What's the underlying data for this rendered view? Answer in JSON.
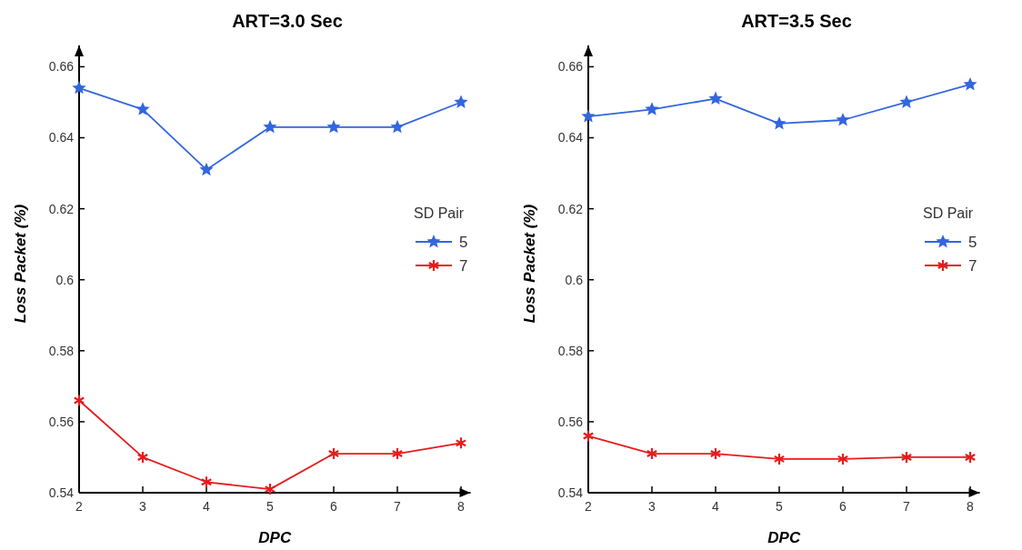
{
  "chart_data": [
    {
      "type": "line",
      "title": "ART=3.0 Sec",
      "xlabel": "DPC",
      "ylabel": "Loss Packet (%)",
      "legend_title": "SD Pair",
      "legend": "right",
      "x": [
        2,
        3,
        4,
        5,
        6,
        7,
        8
      ],
      "xlim": [
        2,
        8.15
      ],
      "xticks": [
        2,
        3,
        4,
        5,
        6,
        7,
        8
      ],
      "ylim": [
        0.54,
        0.666
      ],
      "yticks": [
        0.54,
        0.56,
        0.58,
        0.6,
        0.62,
        0.64,
        0.66
      ],
      "grid": false,
      "series": [
        {
          "name": "5",
          "color": "#3366dd",
          "marker": "star",
          "values": [
            0.654,
            0.648,
            0.631,
            0.643,
            0.643,
            0.643,
            0.65
          ]
        },
        {
          "name": "7",
          "color": "#e61c1c",
          "marker": "cross",
          "values": [
            0.566,
            0.55,
            0.543,
            0.541,
            0.551,
            0.551,
            0.554
          ]
        }
      ]
    },
    {
      "type": "line",
      "title": "ART=3.5 Sec",
      "xlabel": "DPC",
      "ylabel": "Loss Packet (%)",
      "legend_title": "SD Pair",
      "legend": "right",
      "x": [
        2,
        3,
        4,
        5,
        6,
        7,
        8
      ],
      "xlim": [
        2,
        8.15
      ],
      "xticks": [
        2,
        3,
        4,
        5,
        6,
        7,
        8
      ],
      "ylim": [
        0.54,
        0.666
      ],
      "yticks": [
        0.54,
        0.56,
        0.58,
        0.6,
        0.62,
        0.64,
        0.66
      ],
      "grid": false,
      "series": [
        {
          "name": "5",
          "color": "#3366dd",
          "marker": "star",
          "values": [
            0.646,
            0.648,
            0.651,
            0.644,
            0.645,
            0.65,
            0.655
          ]
        },
        {
          "name": "7",
          "color": "#e61c1c",
          "marker": "cross",
          "values": [
            0.556,
            0.551,
            0.551,
            0.5495,
            0.5495,
            0.55,
            0.55
          ]
        }
      ]
    }
  ]
}
